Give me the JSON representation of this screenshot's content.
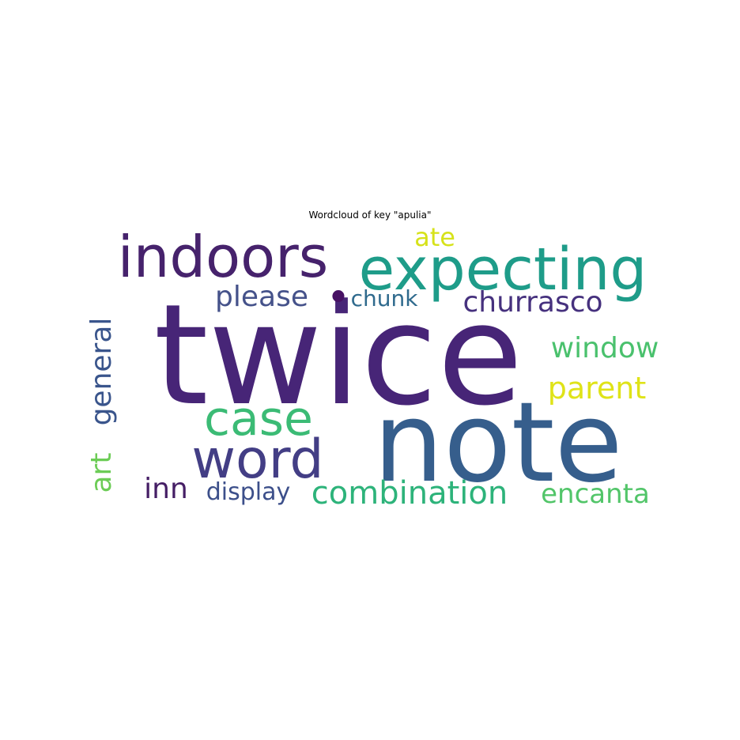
{
  "chart_data": {
    "type": "wordcloud",
    "title": "Wordcloud of key \"apulia\"",
    "words": [
      {
        "text": "twice",
        "color": "#472577"
      },
      {
        "text": "note",
        "color": "#365e8c"
      },
      {
        "text": "expecting",
        "color": "#1e9c89"
      },
      {
        "text": "indoors",
        "color": "#46226c"
      },
      {
        "text": "word",
        "color": "#433e85"
      },
      {
        "text": "case",
        "color": "#3bbb75"
      },
      {
        "text": "combination",
        "color": "#2db37a"
      },
      {
        "text": "churrasco",
        "color": "#46317e"
      },
      {
        "text": "parent",
        "color": "#dfe318"
      },
      {
        "text": "window",
        "color": "#4ac16d"
      },
      {
        "text": "encanta",
        "color": "#52c569"
      },
      {
        "text": "please",
        "color": "#45528a"
      },
      {
        "text": "general",
        "color": "#3a558c"
      },
      {
        "text": "ate",
        "color": "#d6e21a"
      },
      {
        "text": "inn",
        "color": "#451e65"
      },
      {
        "text": "art",
        "color": "#6ccc56"
      },
      {
        "text": "display",
        "color": "#3c4f8a"
      },
      {
        "text": "chunk",
        "color": "#2f6a8d"
      },
      {
        "text": "•",
        "color": "#471164"
      }
    ]
  }
}
